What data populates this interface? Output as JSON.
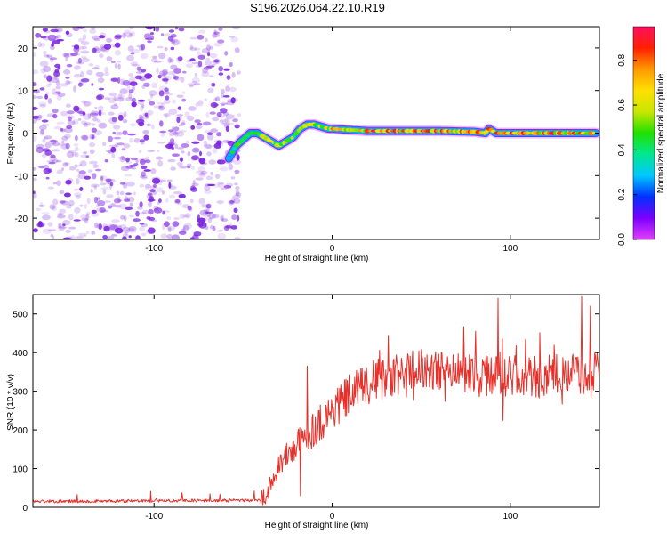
{
  "title": "S196.2026.064.22.10.R19",
  "colors": {
    "snr_line": "#e8302a",
    "scatter": "#7a22e0",
    "frame": "#000000"
  },
  "chart_data": [
    {
      "type": "heatmap",
      "title": "S196.2026.064.22.10.R19",
      "xlabel": "Height of straight line (km)",
      "ylabel": "Frequency (Hz)",
      "xlim": [
        -168,
        150
      ],
      "ylim": [
        -25,
        25
      ],
      "xticks": [
        -100,
        0,
        100
      ],
      "xtick_labels": [
        "-100",
        "0",
        "100"
      ],
      "yticks": [
        -20,
        -10,
        0,
        10,
        20
      ],
      "ytick_labels": [
        "-20",
        "-10",
        "0",
        "10",
        "20"
      ],
      "noise_region_x": [
        -168,
        -52
      ],
      "ridge": {
        "x": [
          -58,
          -54,
          -50,
          -46,
          -42,
          -38,
          -34,
          -30,
          -26,
          -22,
          -18,
          -14,
          -10,
          -6,
          -2,
          0,
          20,
          40,
          60,
          80,
          86,
          88,
          92,
          100,
          120,
          140,
          148
        ],
        "freq": [
          -6,
          -3,
          -1.5,
          0,
          0,
          -1,
          -2,
          -3,
          -2,
          -1,
          1,
          2,
          2,
          1.5,
          1,
          1,
          0.5,
          0.5,
          0.5,
          0.3,
          0,
          1,
          0,
          0,
          0,
          0,
          0
        ]
      },
      "colorbar": {
        "label": "Normalized spectral amplitude",
        "range": [
          0.0,
          0.95
        ],
        "ticks": [
          0.0,
          0.2,
          0.4,
          0.6,
          0.8
        ],
        "tick_labels": [
          "0.0",
          "0.2",
          "0.4",
          "0.6",
          "0.8"
        ],
        "colors": [
          "#e040fb",
          "#7c00ff",
          "#0030ff",
          "#00c8ff",
          "#00e890",
          "#20e000",
          "#c8e600",
          "#ffe000",
          "#ff9900",
          "#ff2000",
          "#ff1060"
        ]
      }
    },
    {
      "type": "line",
      "xlabel": "Height of straight line (km)",
      "ylabel": "SNR (10 * v/v)",
      "xlim": [
        -168,
        150
      ],
      "ylim": [
        0,
        550
      ],
      "xticks": [
        -100,
        0,
        100
      ],
      "xtick_labels": [
        "-100",
        "0",
        "100"
      ],
      "yticks": [
        0,
        100,
        200,
        300,
        400,
        500
      ],
      "ytick_labels": [
        "0",
        "100",
        "200",
        "300",
        "400",
        "500"
      ],
      "trend": {
        "x": [
          -168,
          -40,
          -35,
          -30,
          -20,
          -10,
          0,
          10,
          20,
          30,
          50,
          80,
          100,
          120,
          150
        ],
        "y": [
          15,
          18,
          50,
          110,
          160,
          205,
          250,
          290,
          320,
          340,
          355,
          345,
          340,
          340,
          345
        ]
      },
      "spikes": [
        {
          "x": -14,
          "y": 365
        },
        {
          "x": -18,
          "y": 30
        },
        {
          "x": 93,
          "y": 540
        },
        {
          "x": 96,
          "y": 225
        },
        {
          "x": 140,
          "y": 545
        },
        {
          "x": 145,
          "y": 520
        }
      ]
    }
  ]
}
